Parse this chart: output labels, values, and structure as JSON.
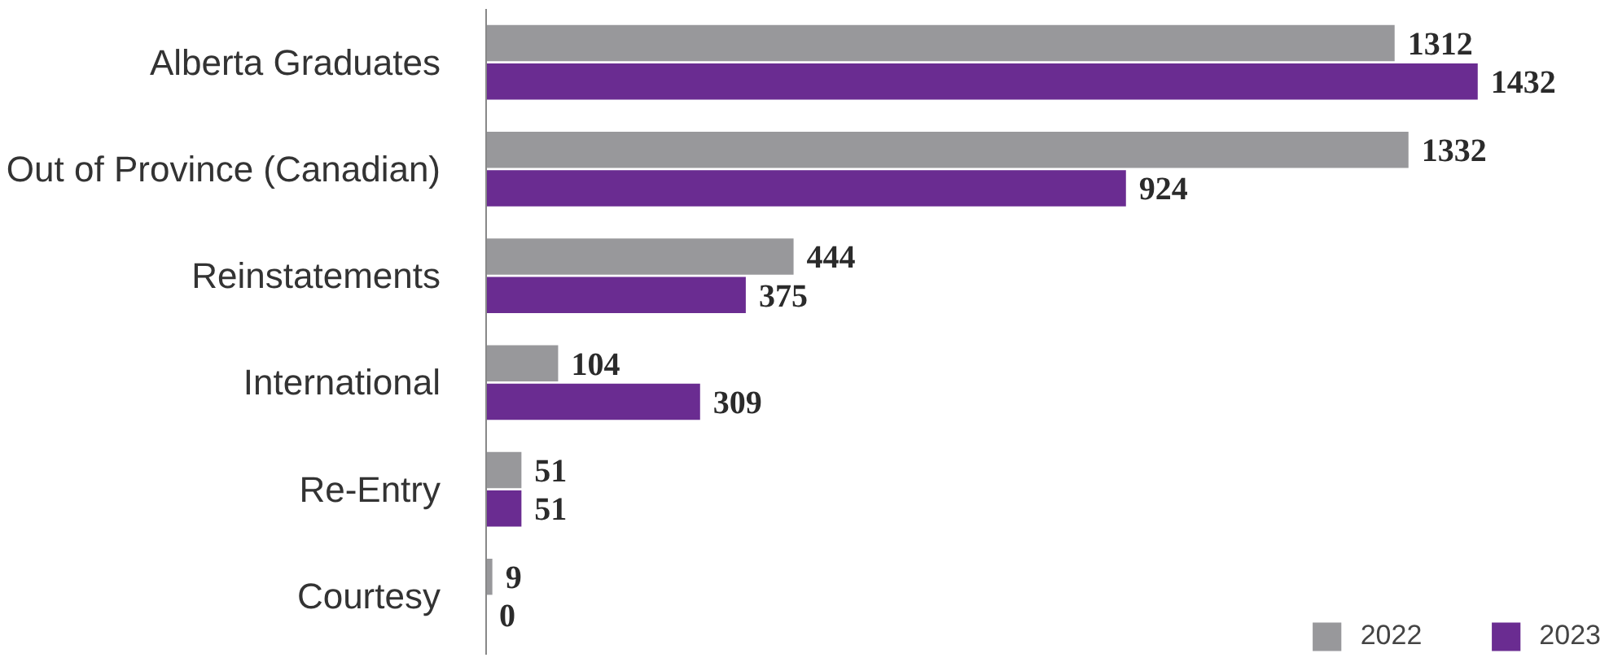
{
  "chart_data": {
    "type": "bar",
    "orientation": "horizontal",
    "categories": [
      "Alberta Graduates",
      "Out of Province (Canadian)",
      "Reinstatements",
      "International",
      "Re-Entry",
      "Courtesy"
    ],
    "series": [
      {
        "name": "2022",
        "color": "#98989b",
        "values": [
          1312,
          1332,
          444,
          104,
          51,
          9
        ]
      },
      {
        "name": "2023",
        "color": "#6a2c91",
        "values": [
          1432,
          924,
          375,
          309,
          51,
          0
        ]
      }
    ],
    "data_labels": true,
    "legend": "bottom right",
    "grid": false
  }
}
